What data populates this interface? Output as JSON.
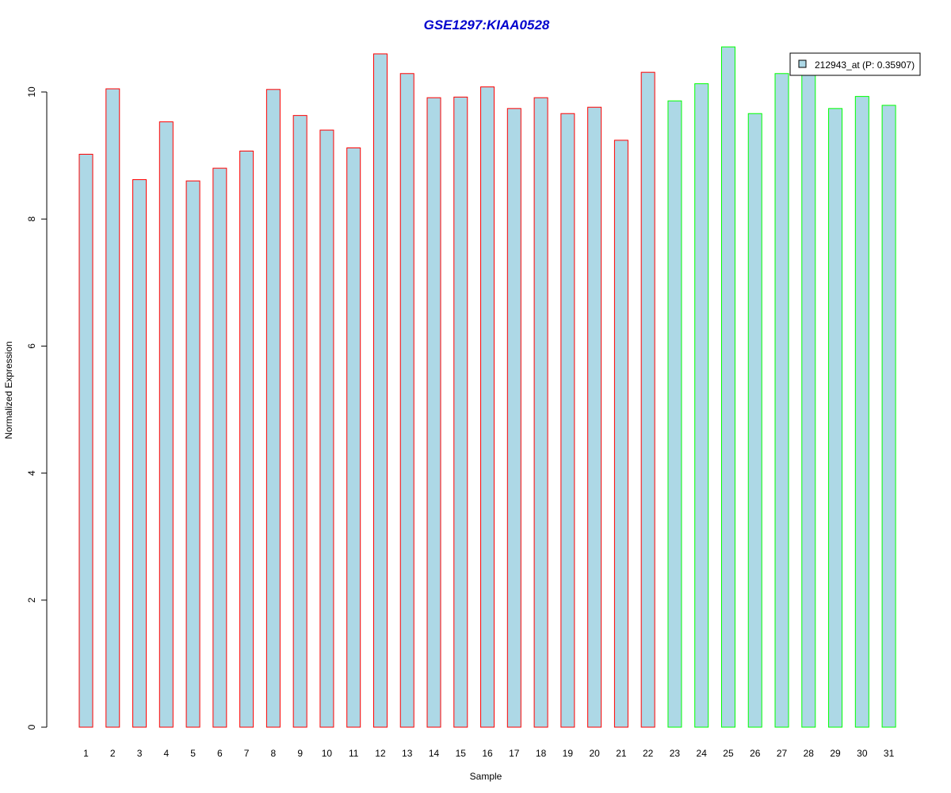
{
  "chart_data": {
    "type": "bar",
    "title": "GSE1297:KIAA0528",
    "xlabel": "Sample",
    "ylabel": "Normalized Expression",
    "ylim": [
      0,
      10.6
    ],
    "yticks": [
      0,
      2,
      4,
      6,
      8,
      10
    ],
    "grid": false,
    "legend_position": "top-right",
    "legend_label": "212943_at (P: 0.35907)",
    "categories": [
      "1",
      "2",
      "3",
      "4",
      "5",
      "6",
      "7",
      "8",
      "9",
      "10",
      "11",
      "12",
      "13",
      "14",
      "15",
      "16",
      "17",
      "18",
      "19",
      "20",
      "21",
      "22",
      "23",
      "24",
      "25",
      "26",
      "27",
      "28",
      "29",
      "30",
      "31"
    ],
    "values": [
      9.02,
      10.05,
      8.62,
      9.53,
      8.6,
      8.8,
      9.07,
      10.04,
      9.63,
      9.4,
      9.12,
      10.6,
      10.29,
      9.91,
      9.92,
      10.08,
      9.74,
      9.91,
      9.66,
      9.76,
      9.24,
      10.31,
      9.86,
      10.13,
      10.71,
      9.66,
      10.29,
      10.3,
      9.74,
      9.93,
      9.79
    ],
    "groups": [
      1,
      1,
      1,
      1,
      1,
      1,
      1,
      1,
      1,
      1,
      1,
      1,
      1,
      1,
      1,
      1,
      1,
      1,
      1,
      1,
      1,
      1,
      2,
      2,
      2,
      2,
      2,
      2,
      2,
      2,
      2
    ]
  },
  "colors": {
    "bar_fill": "#add8e6",
    "group1_border": "#ff0000",
    "group2_border": "#00ff00",
    "title": "#0000cd",
    "axis": "#000000"
  }
}
